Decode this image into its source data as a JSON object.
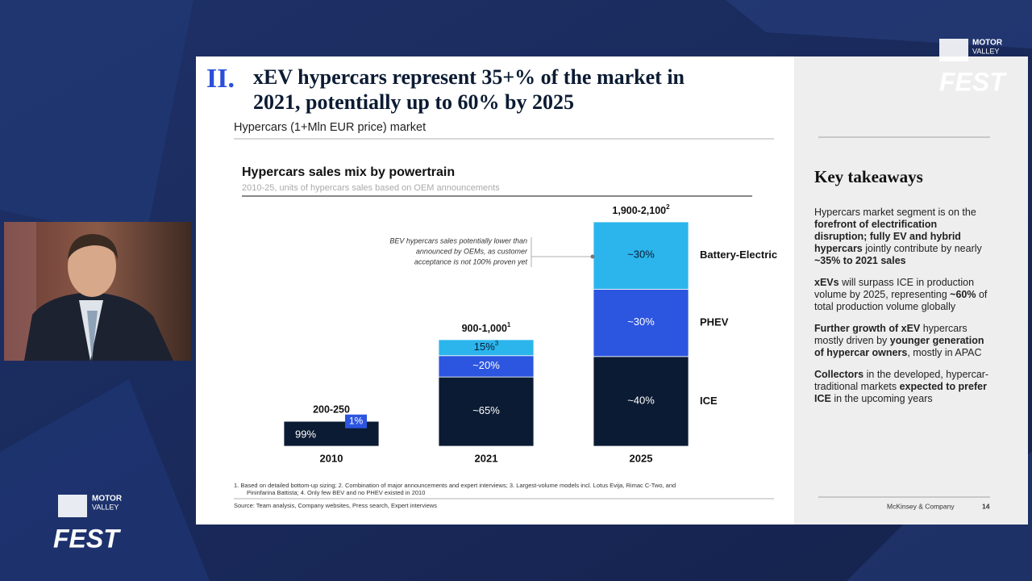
{
  "branding": {
    "top": {
      "line1": "MOTOR",
      "line2": "VALLEY",
      "fest": "FEST"
    },
    "bottom": {
      "line1": "MOTOR",
      "line2": "VALLEY",
      "fest": "FEST"
    }
  },
  "slide": {
    "section": "II.",
    "title_lines": [
      "xEV hypercars represent 35+% of the market in",
      "2021, potentially up to 60% by 2025"
    ],
    "subtitle": "Hypercars (1+Mln EUR price) market",
    "footnotes": [
      "1.     Based on detailed bottom-up sizing; 2. Combination of major announcements and expert interviews;  3. Largest-volume models incl. Lotus Evija, Rimac C-Two, and",
      "Pininfarina Battista; 4. Only few BEV and no PHEV existed in 2010"
    ],
    "source": "Source: Team analysis, Company websites, Press search, Expert interviews",
    "company": "McKinsey & Company",
    "page": "14"
  },
  "takeaways": {
    "title": "Key takeaways",
    "paragraphs": [
      [
        {
          "text": "Hypercars market segment is on the "
        },
        {
          "text": "forefront of electrification disruption; fully EV and hybrid hypercars",
          "bold": true
        },
        {
          "text": " jointly contribute by nearly "
        },
        {
          "text": "~35% to 2021 sales",
          "bold": true
        }
      ],
      [
        {
          "text": "xEVs",
          "bold": true
        },
        {
          "text": " will surpass ICE in production volume by 2025, representing "
        },
        {
          "text": "~60%",
          "bold": true
        },
        {
          "text": " of total production volume globally"
        }
      ],
      [
        {
          "text": "Further growth of xEV",
          "bold": true
        },
        {
          "text": " hypercars mostly driven by "
        },
        {
          "text": "younger generation of hypercar owners",
          "bold": true
        },
        {
          "text": ", mostly in APAC"
        }
      ],
      [
        {
          "text": "Collectors",
          "bold": true
        },
        {
          "text": " in the developed, hypercar-traditional markets "
        },
        {
          "text": "expected to prefer ICE",
          "bold": true
        },
        {
          "text": " in the upcoming years"
        }
      ]
    ]
  },
  "chart_data": {
    "type": "stacked_bar",
    "title": "Hypercars sales mix by powertrain",
    "subtitle": "2010-25, units of hypercars sales based on OEM announcements",
    "categories": [
      "2010",
      "2021",
      "2025"
    ],
    "totals": [
      [
        200,
        250
      ],
      [
        900,
        1000
      ],
      [
        1900,
        2100
      ]
    ],
    "total_labels": [
      "200-250",
      "900-1,000",
      "1,900-2,100"
    ],
    "total_notes": [
      null,
      "1",
      "2"
    ],
    "series": [
      {
        "name": "ICE",
        "color": "#0b1b33",
        "values": [
          99,
          65,
          40
        ],
        "value_labels": [
          "99%",
          "~65%",
          "~40%"
        ]
      },
      {
        "name": "PHEV",
        "color": "#2c55e0",
        "values": [
          null,
          20,
          30
        ],
        "value_labels": [
          null,
          "~20%",
          "~30%"
        ]
      },
      {
        "name": "Battery-Electric",
        "color": "#2bb5ec",
        "values": [
          1,
          15,
          30
        ],
        "value_labels": [
          "1%",
          "15%",
          "~30%"
        ],
        "value_notes": [
          null,
          "3",
          null
        ]
      }
    ],
    "annotation": [
      "BEV hypercars sales potentially lower than",
      "announced by OEMs, as customer",
      "acceptance is not 100% proven yet"
    ]
  }
}
